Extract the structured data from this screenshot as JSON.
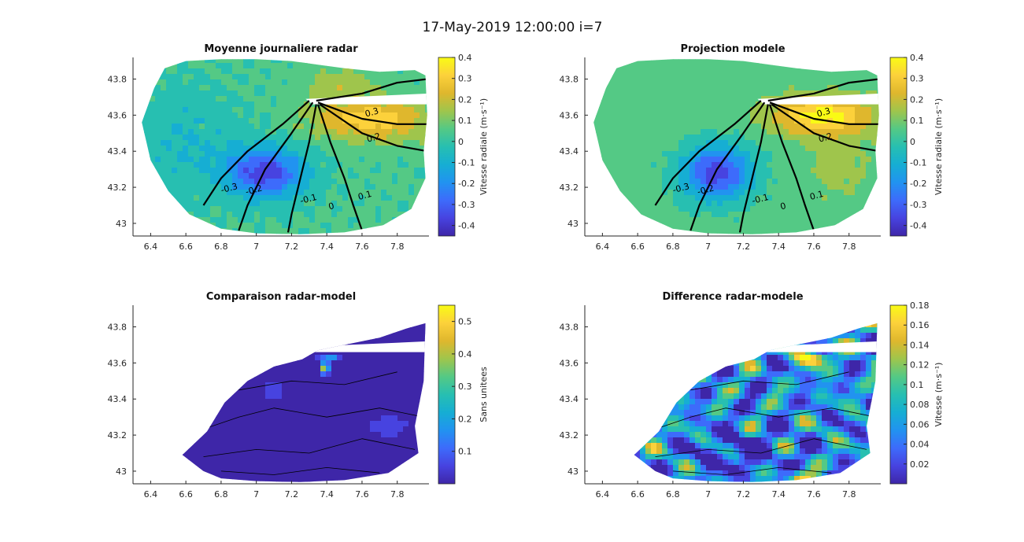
{
  "figure": {
    "suptitle": "17-May-2019 12:00:00 i=7",
    "colormap": [
      "#3e26a8",
      "#4743e0",
      "#3d6bfb",
      "#2193f0",
      "#16aed3",
      "#27bfb1",
      "#54c985",
      "#9fc54c",
      "#dfb72d",
      "#fcd13b",
      "#f9fb15"
    ],
    "contour_color": "#000000"
  },
  "chart_data": [
    {
      "type": "heatmap",
      "title": "Moyenne journaliere radar",
      "x_ticks": [
        "6.4",
        "6.6",
        "6.8",
        "7",
        "7.2",
        "7.4",
        "7.6",
        "7.8"
      ],
      "y_ticks": [
        "43",
        "43.2",
        "43.4",
        "43.6",
        "43.8"
      ],
      "xlim": [
        6.3,
        7.98
      ],
      "ylim": [
        42.93,
        43.92
      ],
      "colorbar": {
        "label": "Vitesse radiale (m·s⁻¹)",
        "ticks": [
          "0.4",
          "0.3",
          "0.2",
          "0.1",
          "0",
          "-0.1",
          "-0.2",
          "-0.3",
          "-0.4"
        ],
        "clim": [
          -0.45,
          0.4
        ]
      },
      "contour_labels": [
        "-0.3",
        "-0.2",
        "-0.1",
        "0",
        "0.1",
        "0.2",
        "0.3"
      ]
    },
    {
      "type": "heatmap",
      "title": "Projection modele",
      "x_ticks": [
        "6.4",
        "6.6",
        "6.8",
        "7",
        "7.2",
        "7.4",
        "7.6",
        "7.8"
      ],
      "y_ticks": [
        "43",
        "43.2",
        "43.4",
        "43.6",
        "43.8"
      ],
      "xlim": [
        6.3,
        7.98
      ],
      "ylim": [
        42.93,
        43.92
      ],
      "colorbar": {
        "label": "Vitesse radiale (m·s⁻¹)",
        "ticks": [
          "0.4",
          "0.3",
          "0.2",
          "0.1",
          "0",
          "-0.1",
          "-0.2",
          "-0.3",
          "-0.4"
        ],
        "clim": [
          -0.45,
          0.4
        ]
      },
      "contour_labels": [
        "-0.3",
        "-0.2",
        "-0.1",
        "0",
        "0.1",
        "0.2",
        "0.3"
      ]
    },
    {
      "type": "heatmap",
      "title": "Comparaison radar-model",
      "x_ticks": [
        "6.4",
        "6.6",
        "6.8",
        "7",
        "7.2",
        "7.4",
        "7.6",
        "7.8"
      ],
      "y_ticks": [
        "43",
        "43.2",
        "43.4",
        "43.6",
        "43.8"
      ],
      "xlim": [
        6.3,
        7.98
      ],
      "ylim": [
        42.93,
        43.92
      ],
      "colorbar": {
        "label": "Sans unitees",
        "ticks": [
          "0.5",
          "0.4",
          "0.3",
          "0.2",
          "0.1"
        ],
        "clim": [
          0.0,
          0.55
        ]
      }
    },
    {
      "type": "heatmap",
      "title": "Difference radar-modele",
      "x_ticks": [
        "6.4",
        "6.6",
        "6.8",
        "7",
        "7.2",
        "7.4",
        "7.6",
        "7.8"
      ],
      "y_ticks": [
        "43",
        "43.2",
        "43.4",
        "43.6",
        "43.8"
      ],
      "xlim": [
        6.3,
        7.98
      ],
      "ylim": [
        42.93,
        43.92
      ],
      "colorbar": {
        "label": "Vitesse (m·s⁻¹)",
        "ticks": [
          "0.18",
          "0.16",
          "0.14",
          "0.12",
          "0.1",
          "0.08",
          "0.06",
          "0.04",
          "0.02"
        ],
        "clim": [
          0.0,
          0.18
        ]
      }
    }
  ]
}
